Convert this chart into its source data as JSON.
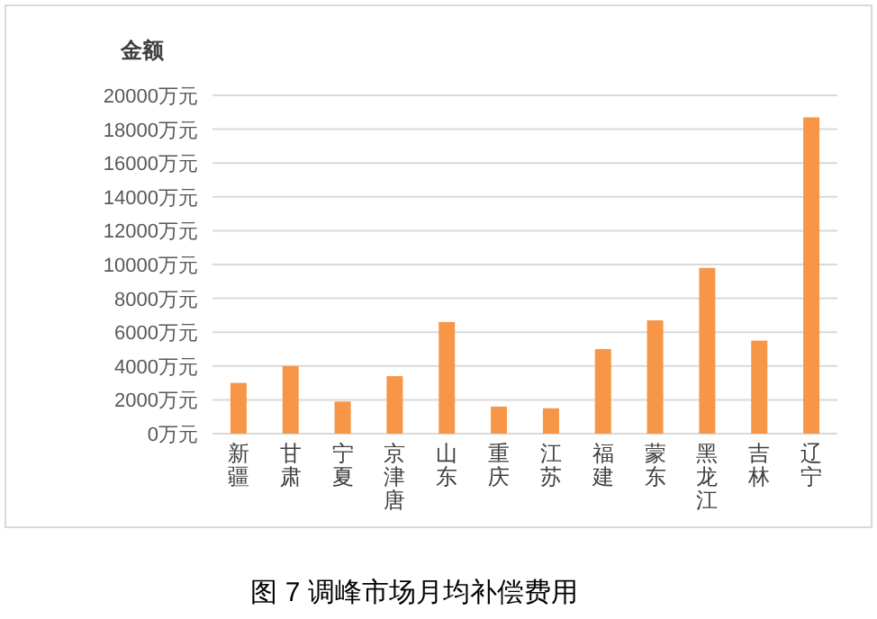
{
  "chart_data": {
    "type": "bar",
    "title": "图 7  调峰市场月均补偿费用",
    "ylabel": "金额",
    "categories": [
      "新疆",
      "甘肃",
      "宁夏",
      "京津唐",
      "山东",
      "重庆",
      "江苏",
      "福建",
      "蒙东",
      "黑龙江",
      "吉林",
      "辽宁"
    ],
    "values": [
      3000,
      4000,
      1900,
      3400,
      6600,
      1600,
      1500,
      5000,
      6700,
      9800,
      5500,
      18700
    ],
    "color": "#f79646",
    "ylim": [
      0,
      20000
    ],
    "yticks": [
      {
        "value": 0,
        "label": "0万元"
      },
      {
        "value": 2000,
        "label": "2000万元"
      },
      {
        "value": 4000,
        "label": "4000万元"
      },
      {
        "value": 6000,
        "label": "6000万元"
      },
      {
        "value": 8000,
        "label": "8000万元"
      },
      {
        "value": 10000,
        "label": "10000万元"
      },
      {
        "value": 12000,
        "label": "12000万元"
      },
      {
        "value": 14000,
        "label": "14000万元"
      },
      {
        "value": 16000,
        "label": "16000万元"
      },
      {
        "value": 18000,
        "label": "18000万元"
      },
      {
        "value": 20000,
        "label": "20000万元"
      }
    ],
    "grid": "y"
  }
}
